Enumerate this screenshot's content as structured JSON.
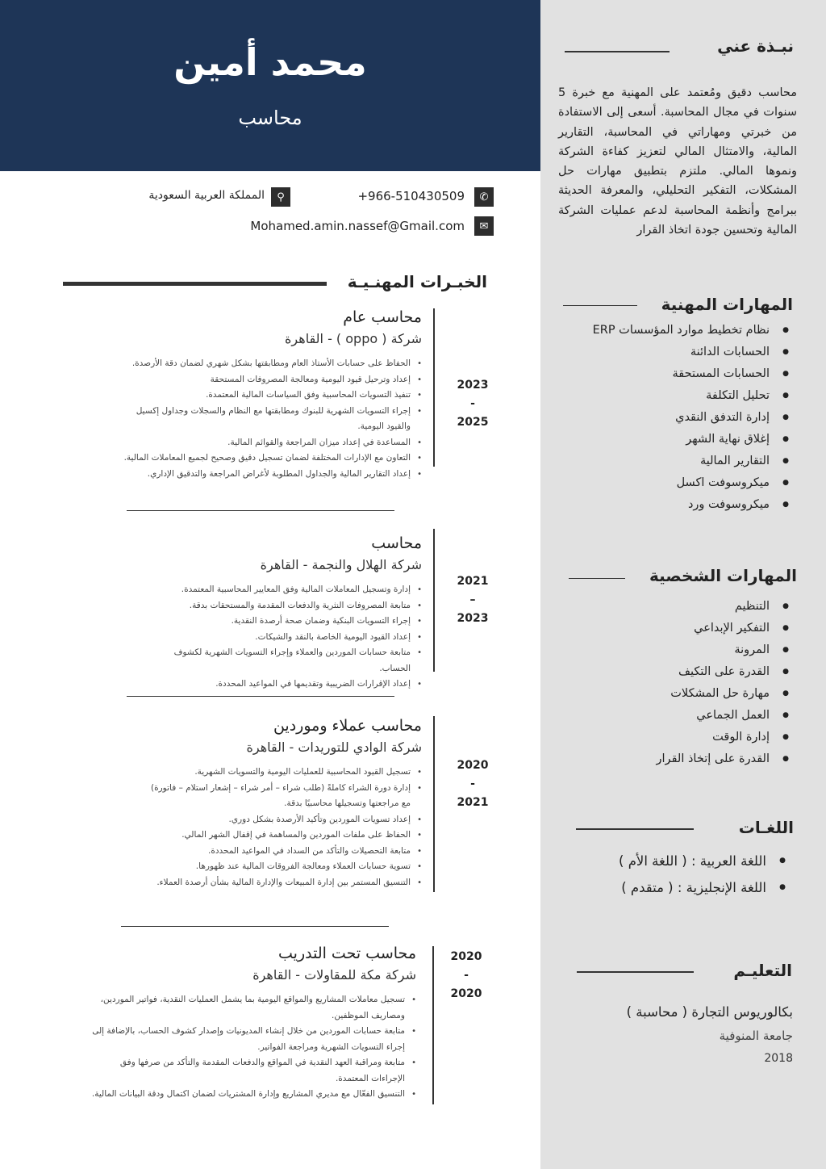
{
  "header": {
    "name": "محمد أمين",
    "role": "محاسب"
  },
  "contact": {
    "phone": "+966-510430509",
    "location": "المملكة العربية السعودية",
    "email": "Mohamed.amin.nassef@Gmail.com"
  },
  "experience": {
    "heading": "الخبـرات المهنـيـة",
    "jobs": [
      {
        "title": "محاسب عام",
        "company": "شركة ( oppo )  -  القاهرة",
        "date": [
          "2023",
          "-",
          "2025"
        ],
        "bullets": [
          "الحفاظ على حسابات الأستاذ العام ومطابقتها بشكل شهري لضمان دقة الأرصدة.",
          "إعداد وترحيل قيود اليومية ومعالجة المصروفات المستحقة",
          "تنفيذ التسويات المحاسبية وفق السياسات المالية المعتمدة.",
          "إجراء التسويات الشهرية للبنوك ومطابقتها مع النظام والسجلات وجداول إكسيل والقيود اليومية.",
          "المساعدة في إعداد ميزان المراجعة والقوائم المالية.",
          "التعاون مع الإدارات المختلفة لضمان تسجيل دقيق وصحيح لجميع المعاملات المالية.",
          "إعداد التقارير المالية والجداول المطلوبة لأغراض المراجعة والتدقيق الإداري."
        ]
      },
      {
        "title": "محاسب",
        "company": "شركة الهلال والنجمة  - القاهرة",
        "date": [
          "2021",
          "–",
          "2023"
        ],
        "bullets": [
          "إدارة وتسجيل المعاملات المالية وفق المعايير المحاسبية المعتمدة.",
          "متابعة المصروفات النثرية والدفعات المقدمة والمستحقات بدقة.",
          "إجراء التسويات البنكية وضمان صحة أرصدة النقدية.",
          "إعداد القيود اليومية الخاصة بالنقد والشيكات.",
          "متابعة حسابات الموردين والعملاء وإجراء التسويات الشهرية لكشوف الحساب.",
          "إعداد الإقرارات الضريبية وتقديمها في المواعيد المحددة."
        ]
      },
      {
        "title": "محاسب عملاء وموردين",
        "company": "شركة الوادي للتوريدات  - القاهرة",
        "date": [
          "2020",
          "-",
          "2021"
        ],
        "bullets": [
          "تسجيل القيود المحاسبية للعمليات اليومية والتسويات الشهرية.",
          "إدارة دورة الشراء كاملةً (طلب شراء – أمر شراء – إشعار استلام – فاتورة) مع مراجعتها وتسجيلها محاسبيًا بدقة.",
          "إعداد تسويات الموردين وتأكيد الأرصدة بشكل دوري.",
          "الحفاظ على ملفات الموردين والمساهمة في إقفال الشهر المالي.",
          "متابعة التحصيلات والتأكد من السداد في المواعيد المحددة.",
          "تسوية حسابات العملاء ومعالجة الفروقات المالية عند ظهورها.",
          "التنسيق المستمر بين إدارة المبيعات والإدارة المالية بشأن أرصدة العملاء."
        ]
      },
      {
        "title": "محاسب تحت التدريب",
        "company": "شركة مكة للمقاولات - القاهرة",
        "date": [
          "2020",
          "-",
          "2020"
        ],
        "bullets": [
          "تسجيل معاملات المشاريع والمواقع اليومية بما يشمل العمليات النقدية، فواتير الموردين، ومصاريف الموظفين.",
          "متابعة حسابات الموردين من خلال إنشاء المديونيات وإصدار كشوف الحساب، بالإضافة إلى إجراء التسويات الشهرية ومراجعة الفواتير.",
          "متابعة ومراقبة العهد النقدية في المواقع والدفعات المقدمة والتأكد من صرفها وفق الإجراءات المعتمدة.",
          "التنسيق الفعّال مع مديري المشاريع وإدارة المشتريات لضمان اكتمال ودقة البيانات المالية."
        ]
      }
    ]
  },
  "about": {
    "heading": "نبـذة عني",
    "text": "محاسب دقيق ومُعتمد على المهنية مع خبرة 5 سنوات في مجال المحاسبة. أسعى إلى الاستفادة من خبرتي ومهاراتي في المحاسبة، التقارير المالية، والامتثال المالي لتعزيز كفاءة الشركة ونموها المالي. ملتزم بتطبيق مهارات حل المشكلات، التفكير التحليلي، والمعرفة الحديثة ببرامج وأنظمة المحاسبة لدعم عمليات الشركة المالية وتحسين جودة اتخاذ القرار"
  },
  "professional_skills": {
    "heading": "المهارات المهنية",
    "items": [
      "نظام تخطيط موارد المؤسسات ERP",
      "الحسابات الدائنة",
      "الحسابات المستحقة",
      "تحليل التكلفة",
      "إدارة التدفق النقدي",
      "إغلاق نهاية الشهر",
      "التقارير المالية",
      "ميكروسوفت اكسل",
      "ميكروسوفت ورد"
    ]
  },
  "personal_skills": {
    "heading": "المهارات الشخصية",
    "items": [
      "التنظيم",
      "التفكير الإبداعي",
      "المرونة",
      "القدرة على التكيف",
      "مهارة حل المشكلات",
      "العمل الجماعي",
      "إدارة الوقت",
      "القدرة على إتخاذ القرار"
    ]
  },
  "languages": {
    "heading": "اللغـات",
    "items": [
      "اللغة العربية : ( اللغة الأم )",
      "اللغة الإنجليزية :  ( متقدم )"
    ]
  },
  "education": {
    "heading": "التعليـم",
    "degree": "بكالوريوس التجارة ( محاسبة )",
    "university": "جامعة المنوفية",
    "year": "2018"
  },
  "colors": {
    "header": "#1e3557",
    "sidebar": "#e1e1e1"
  }
}
